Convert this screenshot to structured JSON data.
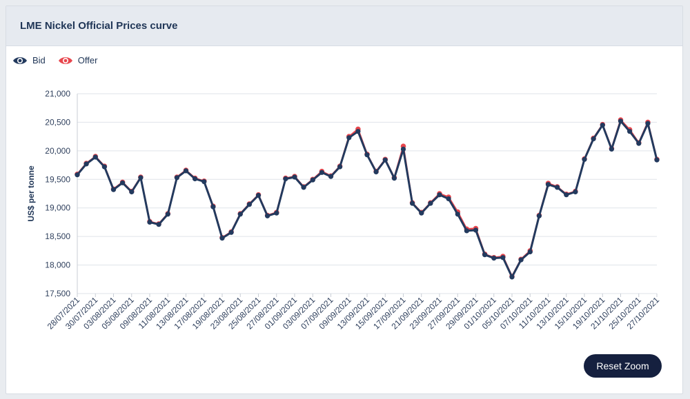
{
  "header": {
    "title": "LME Nickel Official Prices curve"
  },
  "legend": [
    {
      "label": "Bid",
      "color": "#233a5e",
      "icon": "eye-icon"
    },
    {
      "label": "Offer",
      "color": "#e8474e",
      "icon": "eye-icon"
    }
  ],
  "reset_zoom_label": "Reset Zoom",
  "chart_data": {
    "type": "line",
    "title": "",
    "ylabel": "US$ per tonne",
    "ylim": [
      17500,
      21000
    ],
    "yticks": [
      17500,
      18000,
      18500,
      19000,
      19500,
      20000,
      20500,
      21000
    ],
    "ytick_labels": [
      "17,500",
      "18,000",
      "18,500",
      "19,000",
      "19,500",
      "20,000",
      "20,500",
      "21,000"
    ],
    "grid": true,
    "legend_position": "top-left",
    "x": [
      "28/07/2021",
      "29/07/2021",
      "30/07/2021",
      "02/08/2021",
      "03/08/2021",
      "04/08/2021",
      "05/08/2021",
      "06/08/2021",
      "09/08/2021",
      "10/08/2021",
      "11/08/2021",
      "12/08/2021",
      "13/08/2021",
      "16/08/2021",
      "17/08/2021",
      "18/08/2021",
      "19/08/2021",
      "20/08/2021",
      "23/08/2021",
      "24/08/2021",
      "25/08/2021",
      "26/08/2021",
      "27/08/2021",
      "31/08/2021",
      "01/09/2021",
      "02/09/2021",
      "03/09/2021",
      "06/09/2021",
      "07/09/2021",
      "08/09/2021",
      "09/09/2021",
      "10/09/2021",
      "13/09/2021",
      "14/09/2021",
      "15/09/2021",
      "16/09/2021",
      "17/09/2021",
      "20/09/2021",
      "21/09/2021",
      "22/09/2021",
      "23/09/2021",
      "24/09/2021",
      "27/09/2021",
      "28/09/2021",
      "29/09/2021",
      "30/09/2021",
      "01/10/2021",
      "04/10/2021",
      "05/10/2021",
      "06/10/2021",
      "07/10/2021",
      "08/10/2021",
      "11/10/2021",
      "12/10/2021",
      "13/10/2021",
      "14/10/2021",
      "15/10/2021",
      "18/10/2021",
      "19/10/2021",
      "20/10/2021",
      "21/10/2021",
      "22/10/2021",
      "25/10/2021",
      "26/10/2021",
      "27/10/2021"
    ],
    "xtick_labels": [
      "28/07/2021",
      "30/07/2021",
      "03/08/2021",
      "05/08/2021",
      "09/08/2021",
      "11/08/2021",
      "13/08/2021",
      "17/08/2021",
      "19/08/2021",
      "23/08/2021",
      "25/08/2021",
      "27/08/2021",
      "01/09/2021",
      "03/09/2021",
      "07/09/2021",
      "09/09/2021",
      "13/09/2021",
      "15/09/2021",
      "17/09/2021",
      "21/09/2021",
      "23/09/2021",
      "27/09/2021",
      "29/09/2021",
      "01/10/2021",
      "05/10/2021",
      "07/10/2021",
      "11/10/2021",
      "13/10/2021",
      "15/10/2021",
      "19/10/2021",
      "21/10/2021",
      "25/10/2021",
      "27/10/2021"
    ],
    "series": [
      {
        "name": "Bid",
        "color": "#233a5e",
        "values": [
          19580,
          19770,
          19890,
          19720,
          19320,
          19440,
          19280,
          19530,
          18750,
          18710,
          18890,
          19530,
          19650,
          19510,
          19460,
          19020,
          18470,
          18570,
          18890,
          19060,
          19220,
          18860,
          18910,
          19510,
          19540,
          19360,
          19490,
          19620,
          19550,
          19720,
          20230,
          20340,
          19930,
          19630,
          19840,
          19520,
          20030,
          19080,
          18910,
          19080,
          19230,
          19160,
          18890,
          18600,
          18610,
          18180,
          18120,
          18130,
          17790,
          18090,
          18230,
          18860,
          19410,
          19360,
          19230,
          19280,
          19850,
          20210,
          20450,
          20030,
          20520,
          20340,
          20130,
          20480,
          19840
        ]
      },
      {
        "name": "Offer",
        "color": "#e8474e",
        "values": [
          19590,
          19780,
          19900,
          19730,
          19330,
          19450,
          19290,
          19540,
          18760,
          18720,
          18900,
          19540,
          19660,
          19520,
          19470,
          19030,
          18480,
          18580,
          18900,
          19070,
          19230,
          18870,
          18920,
          19520,
          19550,
          19370,
          19500,
          19640,
          19560,
          19730,
          20250,
          20380,
          19940,
          19640,
          19850,
          19530,
          20080,
          19090,
          18920,
          19090,
          19250,
          19190,
          18930,
          18630,
          18640,
          18190,
          18130,
          18150,
          17800,
          18100,
          18250,
          18870,
          19430,
          19370,
          19240,
          19290,
          19860,
          20220,
          20460,
          20040,
          20540,
          20370,
          20140,
          20500,
          19850
        ]
      }
    ]
  }
}
